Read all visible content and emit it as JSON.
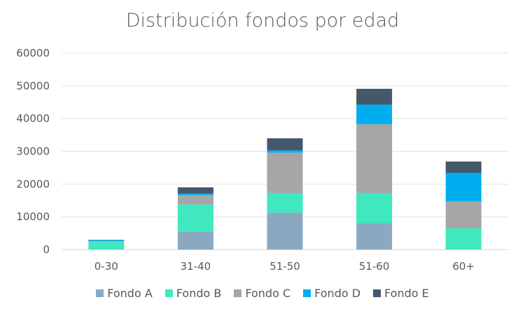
{
  "chart_data": {
    "type": "bar",
    "stacked": true,
    "title": "Distribución fondos por edad",
    "xlabel": "",
    "ylabel": "",
    "ylim": [
      0,
      60000
    ],
    "yticks": [
      0,
      10000,
      20000,
      30000,
      40000,
      50000,
      60000
    ],
    "grid": true,
    "legend_position": "bottom",
    "categories": [
      "0-30",
      "31-40",
      "51-50",
      "51-60",
      "60+"
    ],
    "series": [
      {
        "name": "Fondo A",
        "color": "#8AA9C1",
        "values": [
          0,
          5500,
          11300,
          8000,
          0
        ]
      },
      {
        "name": "Fondo B",
        "color": "#40E8BF",
        "values": [
          2600,
          8300,
          6000,
          9300,
          6500
        ]
      },
      {
        "name": "Fondo C",
        "color": "#A6A6A6",
        "values": [
          0,
          2800,
          12300,
          21000,
          8200
        ]
      },
      {
        "name": "Fondo D",
        "color": "#00AEEF",
        "values": [
          300,
          500,
          700,
          6000,
          8700
        ]
      },
      {
        "name": "Fondo E",
        "color": "#44586A",
        "values": [
          100,
          1900,
          3700,
          4800,
          3500
        ]
      }
    ]
  }
}
